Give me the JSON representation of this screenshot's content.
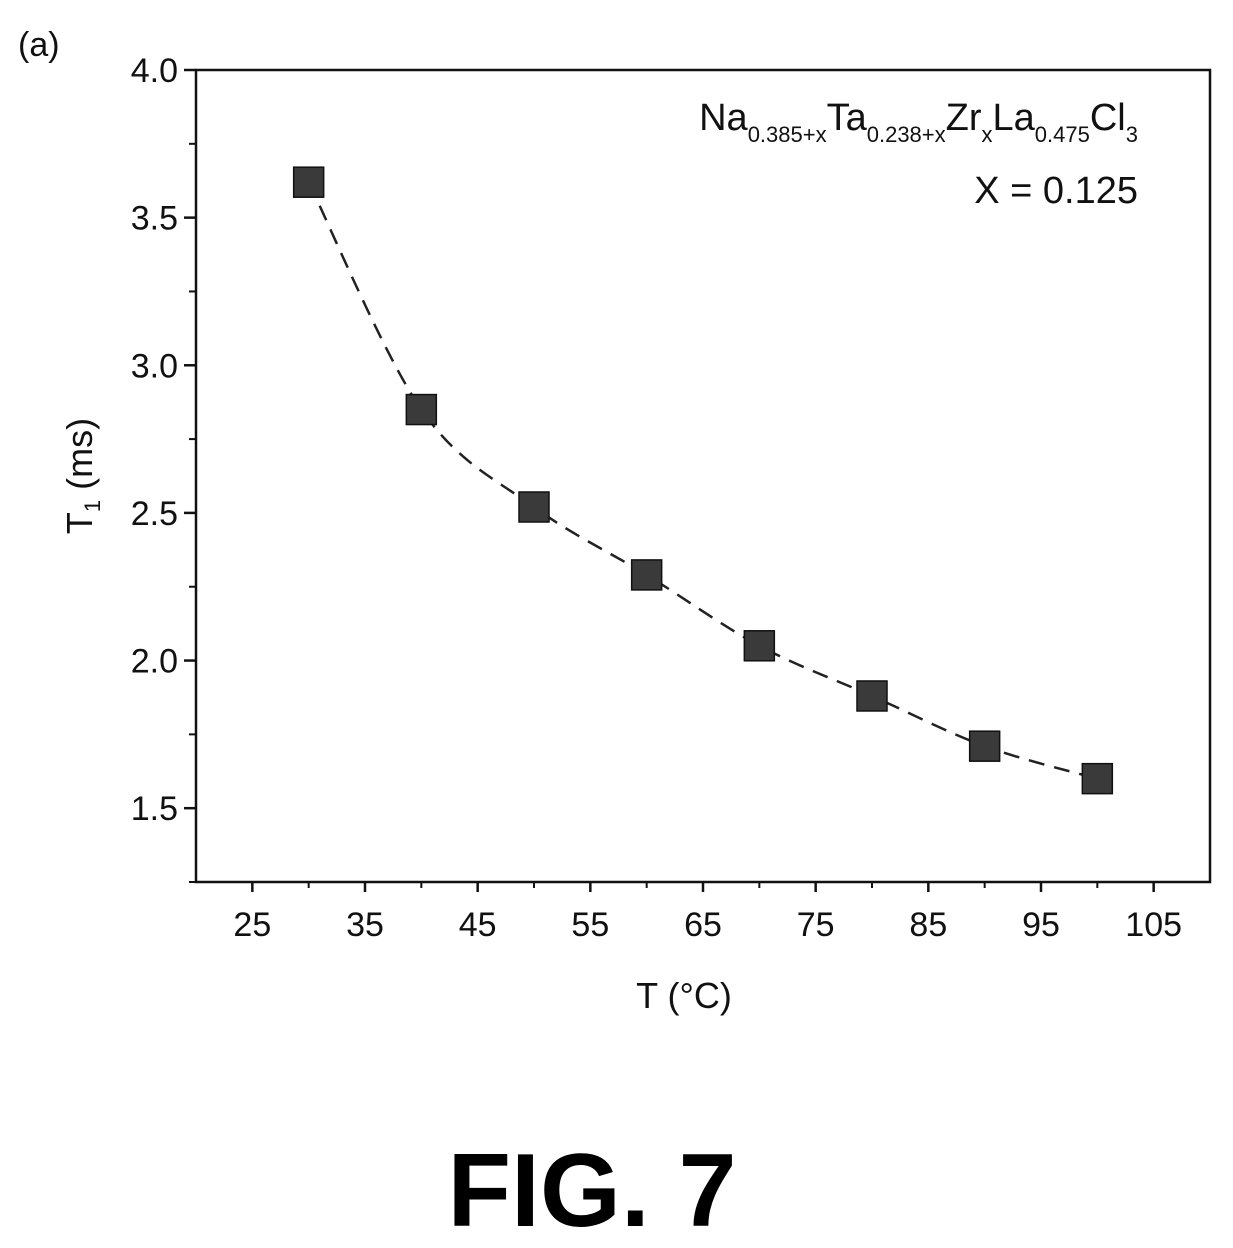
{
  "panel_label": "(a)",
  "figure_caption": "FIG. 7",
  "chart_data": {
    "type": "scatter",
    "xlabel": "T (°C)",
    "ylabel_main": "T",
    "ylabel_sub": "1",
    "ylabel_rest": " (ms)",
    "xlim": [
      20,
      110
    ],
    "ylim": [
      1.25,
      4.0
    ],
    "x_ticks": [
      25,
      35,
      45,
      55,
      65,
      75,
      85,
      95,
      105
    ],
    "y_ticks": [
      1.5,
      2.0,
      2.5,
      3.0,
      3.5,
      4.0
    ],
    "y_tick_labels": [
      "1.5",
      "2.0",
      "2.5",
      "3.0",
      "3.5",
      "4.0"
    ],
    "annotation": {
      "formula_parts": [
        {
          "text": "Na",
          "sub": false
        },
        {
          "text": "0.385+x",
          "sub": true
        },
        {
          "text": "Ta",
          "sub": false
        },
        {
          "text": "0.238+x",
          "sub": true
        },
        {
          "text": "Zr",
          "sub": false
        },
        {
          "text": "x",
          "sub": true
        },
        {
          "text": "La",
          "sub": false
        },
        {
          "text": "0.475",
          "sub": true
        },
        {
          "text": "Cl",
          "sub": false
        },
        {
          "text": "3",
          "sub": true
        }
      ],
      "x_value_label": "X = 0.125"
    },
    "series": [
      {
        "marker": "square",
        "line": "dashed",
        "color": "#3a3a3a",
        "x": [
          30,
          40,
          50,
          60,
          70,
          80,
          90,
          100
        ],
        "y": [
          3.62,
          2.85,
          2.52,
          2.29,
          2.05,
          1.88,
          1.71,
          1.6
        ]
      }
    ]
  }
}
